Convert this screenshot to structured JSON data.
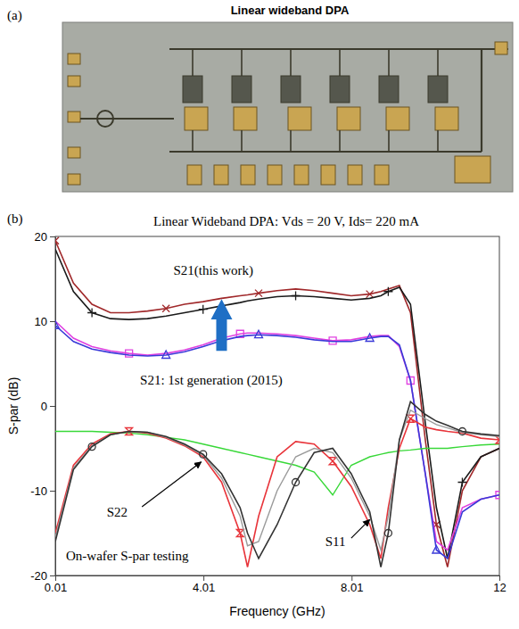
{
  "panels": [
    {
      "letter": "(a)",
      "title": "Linear wideband DPA"
    },
    {
      "letter": "(b)"
    }
  ],
  "chart_data": {
    "type": "line",
    "title": "Linear Wideband DPA: Vds = 20 V, Ids= 220 mA",
    "x_label": "Frequency (GHz)",
    "y_label": "S-par (dB)",
    "annotations": [
      "S21(this work)",
      "S21: 1st generation (2015)",
      "S22",
      "S11",
      "On-wafer S-par testing"
    ],
    "x": [
      0.01,
      0.5,
      1,
      1.5,
      2,
      2.5,
      3,
      3.5,
      4,
      4.5,
      5,
      5.2,
      5.5,
      6,
      6.5,
      7,
      7.5,
      8,
      8.5,
      8.8,
      9,
      9.3,
      9.6,
      10,
      10.3,
      10.6,
      11,
      11.5,
      12
    ],
    "xlim": [
      0.01,
      12
    ],
    "xticks": [
      0.01,
      4.01,
      8.01,
      12
    ],
    "ylim": [
      -20,
      20
    ],
    "yticks": [
      -20,
      -10,
      0,
      10,
      20
    ],
    "grid": false,
    "series": [
      {
        "color": "#a0282a",
        "marker": "x",
        "values": [
          19.5,
          14.5,
          12,
          11,
          11,
          11.2,
          11.5,
          12,
          12.3,
          12.7,
          13,
          13.1,
          13.3,
          13.6,
          13.8,
          13.6,
          13.3,
          13,
          13.2,
          13.5,
          13.8,
          14.2,
          11,
          -4,
          -14,
          -19,
          -10,
          -6,
          -5
        ]
      },
      {
        "color": "#1a1a1a",
        "marker": "plus",
        "values": [
          18.5,
          13.5,
          11,
          10.3,
          10.2,
          10.3,
          10.6,
          11,
          11.4,
          11.8,
          12.2,
          12.4,
          12.6,
          12.9,
          13,
          12.9,
          12.7,
          12.5,
          12.7,
          13,
          13.5,
          14,
          12,
          -2,
          -12,
          -18,
          -9,
          -6,
          -5
        ]
      },
      {
        "color": "#e040e0",
        "marker": "square",
        "values": [
          10,
          8,
          7,
          6.5,
          6.2,
          6,
          6.2,
          6.6,
          7.2,
          8,
          8.5,
          8.6,
          8.6,
          8.5,
          8.3,
          8,
          7.7,
          7.8,
          8.2,
          8.3,
          8.3,
          7,
          3,
          -8,
          -16,
          -17,
          -12,
          -11,
          -10.5
        ]
      },
      {
        "color": "#3a3ad8",
        "marker": "triangle",
        "values": [
          9.5,
          7.6,
          6.7,
          6.3,
          6,
          5.9,
          6,
          6.4,
          7,
          7.7,
          8.2,
          8.3,
          8.4,
          8.3,
          8.1,
          7.8,
          7.6,
          7.6,
          8,
          8.2,
          8.2,
          7.2,
          3,
          -8,
          -17,
          -18,
          -12.5,
          -11,
          -10.5
        ]
      },
      {
        "color": "#38d838",
        "marker": "none",
        "values": [
          -3,
          -3,
          -3,
          -3.1,
          -3.2,
          -3.4,
          -3.7,
          -4,
          -4.5,
          -5,
          -5.5,
          -5.7,
          -6,
          -6.5,
          -7,
          -7.8,
          -10.5,
          -7,
          -6,
          -5.7,
          -5.5,
          -5.3,
          -5.2,
          -5,
          -5,
          -5,
          -4.8,
          -4.6,
          -4.5
        ]
      },
      {
        "color": "#e8343a",
        "marker": "hourglass",
        "values": [
          -15,
          -7,
          -4.5,
          -3.3,
          -3,
          -3.2,
          -3.8,
          -4.7,
          -6,
          -9,
          -15,
          -19,
          -13,
          -6,
          -4.2,
          -4.5,
          -6.5,
          -9.5,
          -14,
          -18,
          -12,
          -5,
          -1.5,
          -2.5,
          -2.8,
          -3,
          -3.2,
          -3.8,
          -4
        ]
      },
      {
        "color": "#9a9a9a",
        "marker": "none",
        "values": [
          -15.5,
          -7.3,
          -4.7,
          -3.4,
          -3,
          -3.1,
          -3.7,
          -4.6,
          -5.8,
          -8.5,
          -13,
          -16.5,
          -16,
          -10,
          -6,
          -5,
          -5.5,
          -8.5,
          -13,
          -17,
          -13,
          -4,
          -0.5,
          -1.5,
          -2.2,
          -2.6,
          -3.1,
          -3.4,
          -3.6
        ]
      },
      {
        "color": "#333333",
        "marker": "circle",
        "values": [
          -16,
          -7.5,
          -4.8,
          -3.4,
          -3,
          -3.1,
          -3.6,
          -4.5,
          -5.7,
          -8,
          -12,
          -15,
          -18,
          -14,
          -9,
          -5.5,
          -5,
          -8,
          -12.5,
          -19,
          -15,
          -4,
          0.5,
          -1,
          -1.8,
          -2.3,
          -3,
          -3.3,
          -3.5
        ]
      }
    ]
  }
}
